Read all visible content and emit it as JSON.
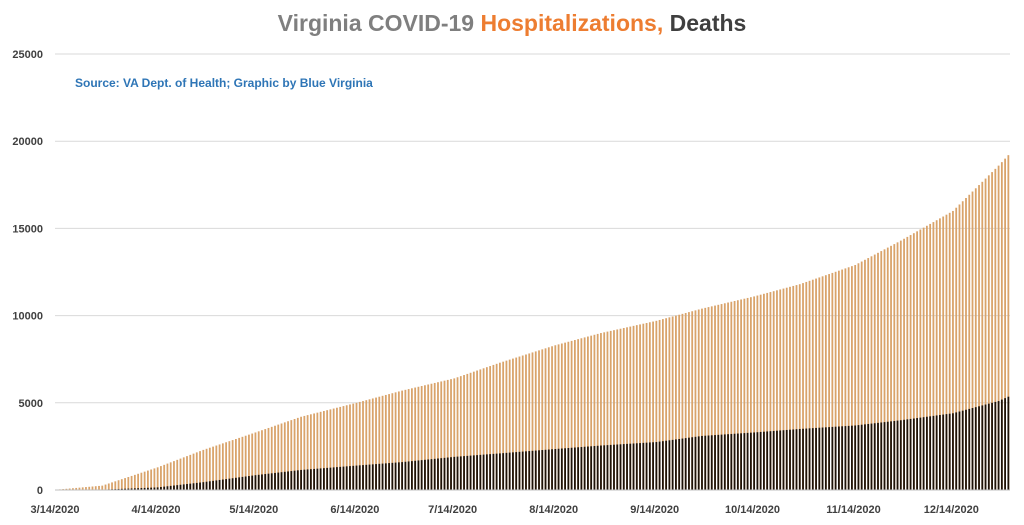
{
  "chart_data": {
    "type": "bar",
    "title": {
      "part1": "Virginia COVID-19 ",
      "part2": "Hospitalizations,",
      "part3": " Deaths"
    },
    "source_note": "Source: VA Dept. of Health; Graphic by Blue Virginia",
    "xlabel": "",
    "ylabel": "",
    "ylim": [
      0,
      25000
    ],
    "yticks": [
      0,
      5000,
      10000,
      15000,
      20000,
      25000
    ],
    "grid": true,
    "legend": "none",
    "x_start_date": "3/14/2020",
    "x_end_date": "12/31/2020",
    "x_tick_labels": [
      "3/14/2020",
      "4/14/2020",
      "5/14/2020",
      "6/14/2020",
      "7/14/2020",
      "8/14/2020",
      "9/14/2020",
      "10/14/2020",
      "11/14/2020",
      "12/14/2020"
    ],
    "colors": {
      "title_part1": "#7f7f7f",
      "title_part2": "#ed7d31",
      "title_part3": "#3f3f3f",
      "source": "#2e75b6",
      "hospitalizations": "#d9a36a",
      "deaths": "#1e1208",
      "grid": "#d9d9d9",
      "axis": "#bfbfbf"
    },
    "series": [
      {
        "name": "Hospitalizations",
        "x": [
          "3/14/2020",
          "3/28/2020",
          "4/14/2020",
          "4/28/2020",
          "5/14/2020",
          "5/28/2020",
          "6/14/2020",
          "6/28/2020",
          "7/14/2020",
          "7/28/2020",
          "8/14/2020",
          "8/28/2020",
          "9/14/2020",
          "9/28/2020",
          "10/14/2020",
          "10/28/2020",
          "11/14/2020",
          "11/28/2020",
          "12/14/2020",
          "12/28/2020",
          "12/31/2020"
        ],
        "values": [
          20,
          250,
          1300,
          2300,
          3300,
          4200,
          5000,
          5700,
          6400,
          7300,
          8300,
          9000,
          9700,
          10400,
          11100,
          11800,
          12900,
          14300,
          16000,
          18600,
          19200
        ]
      },
      {
        "name": "Deaths",
        "x": [
          "3/14/2020",
          "3/28/2020",
          "4/14/2020",
          "4/28/2020",
          "5/14/2020",
          "5/28/2020",
          "6/14/2020",
          "6/28/2020",
          "7/14/2020",
          "7/28/2020",
          "8/14/2020",
          "8/28/2020",
          "9/14/2020",
          "9/28/2020",
          "10/14/2020",
          "10/28/2020",
          "11/14/2020",
          "11/28/2020",
          "12/14/2020",
          "12/28/2020",
          "12/31/2020"
        ],
        "values": [
          0,
          20,
          150,
          450,
          850,
          1150,
          1400,
          1600,
          1900,
          2100,
          2350,
          2550,
          2750,
          3100,
          3300,
          3500,
          3700,
          4000,
          4400,
          5100,
          5350
        ]
      }
    ]
  }
}
